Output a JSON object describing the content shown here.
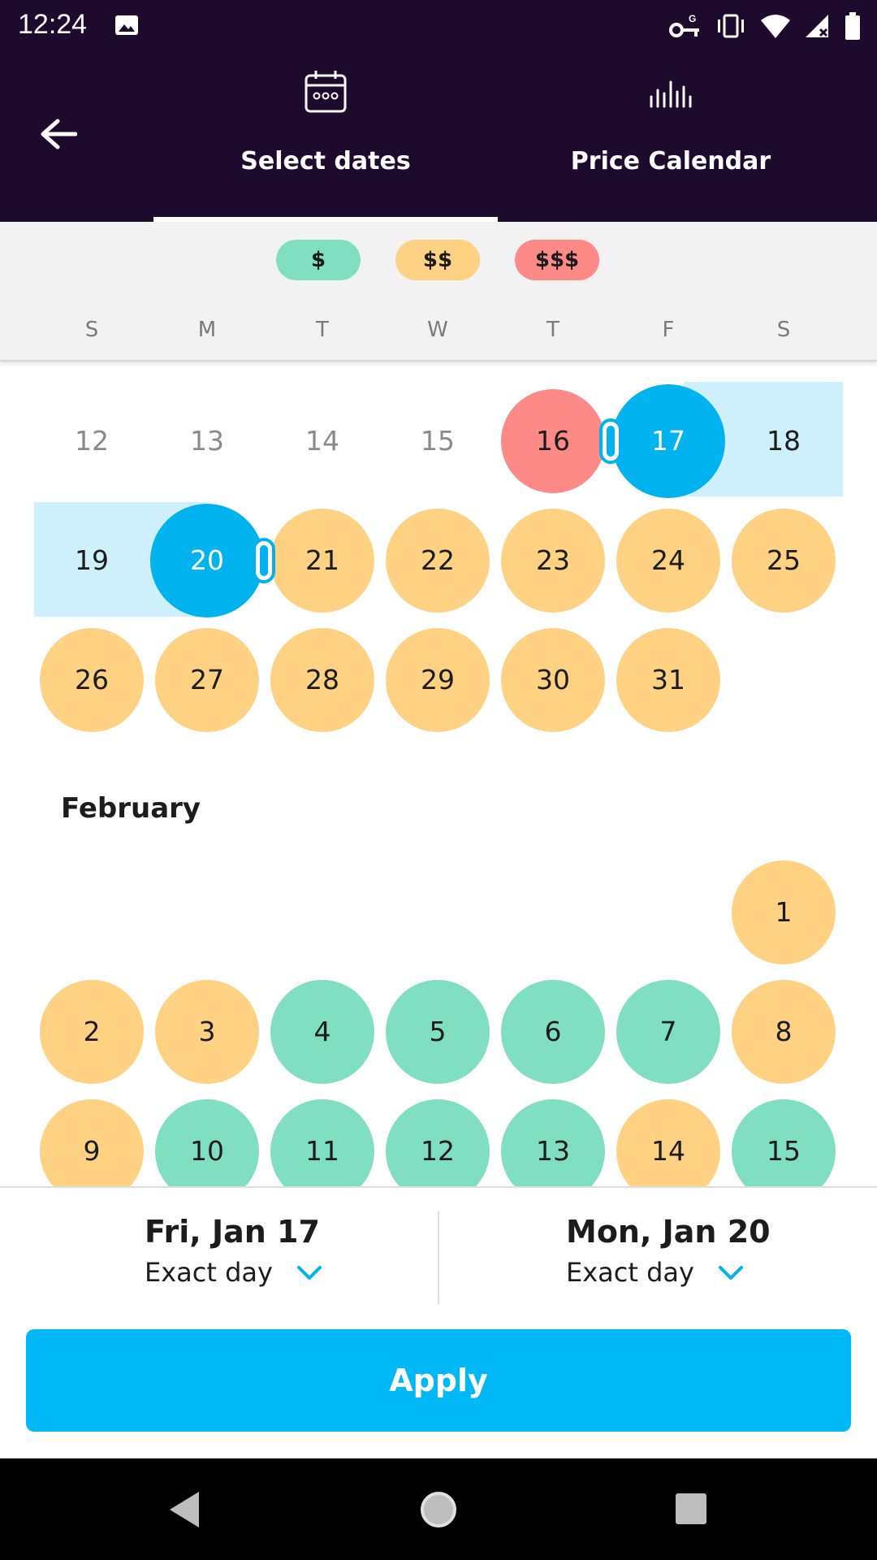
{
  "status_bar": {
    "time": "12:24",
    "icons_left": [
      "image-icon"
    ],
    "icons_right": [
      "vpn-key-icon",
      "vibrate-icon",
      "wifi-icon",
      "signal-icon",
      "battery-icon"
    ]
  },
  "header": {
    "back_icon": "arrow-left-icon",
    "tabs": [
      {
        "label": "Select dates",
        "icon": "calendar-icon",
        "active": true
      },
      {
        "label": "Price Calendar",
        "icon": "bars-icon",
        "active": false
      }
    ]
  },
  "legend": {
    "items": [
      {
        "label": "$",
        "color": "#7fdfc0"
      },
      {
        "label": "$$",
        "color": "#fed282"
      },
      {
        "label": "$$$",
        "color": "#fd8a87"
      }
    ]
  },
  "weekdays": [
    "S",
    "M",
    "T",
    "W",
    "T",
    "F",
    "S"
  ],
  "calendar": {
    "colors": {
      "low": "#7fdfc0",
      "mid": "#fed282",
      "high": "#fd8a87",
      "selected": "#00b2ee",
      "range": "#cdf0fc"
    },
    "january_rows": [
      [
        {
          "d": "12",
          "p": "none"
        },
        {
          "d": "13",
          "p": "none"
        },
        {
          "d": "14",
          "p": "none"
        },
        {
          "d": "15",
          "p": "none"
        },
        {
          "d": "16",
          "p": "high"
        },
        {
          "d": "17",
          "p": "selected"
        },
        {
          "d": "18",
          "p": "range"
        }
      ],
      [
        {
          "d": "19",
          "p": "range"
        },
        {
          "d": "20",
          "p": "selected"
        },
        {
          "d": "21",
          "p": "mid"
        },
        {
          "d": "22",
          "p": "mid"
        },
        {
          "d": "23",
          "p": "mid"
        },
        {
          "d": "24",
          "p": "mid"
        },
        {
          "d": "25",
          "p": "mid"
        }
      ],
      [
        {
          "d": "26",
          "p": "mid"
        },
        {
          "d": "27",
          "p": "mid"
        },
        {
          "d": "28",
          "p": "mid"
        },
        {
          "d": "29",
          "p": "mid"
        },
        {
          "d": "30",
          "p": "mid"
        },
        {
          "d": "31",
          "p": "mid"
        }
      ]
    ],
    "month_title": "February",
    "february_rows": [
      [
        {
          "d": "1",
          "p": "mid",
          "col": 6
        }
      ],
      [
        {
          "d": "2",
          "p": "mid"
        },
        {
          "d": "3",
          "p": "mid"
        },
        {
          "d": "4",
          "p": "low"
        },
        {
          "d": "5",
          "p": "low"
        },
        {
          "d": "6",
          "p": "low"
        },
        {
          "d": "7",
          "p": "low"
        },
        {
          "d": "8",
          "p": "mid"
        }
      ],
      [
        {
          "d": "9",
          "p": "mid"
        },
        {
          "d": "10",
          "p": "low"
        },
        {
          "d": "11",
          "p": "low"
        },
        {
          "d": "12",
          "p": "low"
        },
        {
          "d": "13",
          "p": "low"
        },
        {
          "d": "14",
          "p": "mid"
        },
        {
          "d": "15",
          "p": "low"
        }
      ]
    ]
  },
  "summary": {
    "depart": {
      "date": "Fri, Jan 17",
      "mode": "Exact day"
    },
    "return": {
      "date": "Mon, Jan 20",
      "mode": "Exact day"
    }
  },
  "apply_label": "Apply",
  "navbar": {
    "icons": [
      "nav-back-icon",
      "nav-home-icon",
      "nav-recents-icon"
    ]
  }
}
